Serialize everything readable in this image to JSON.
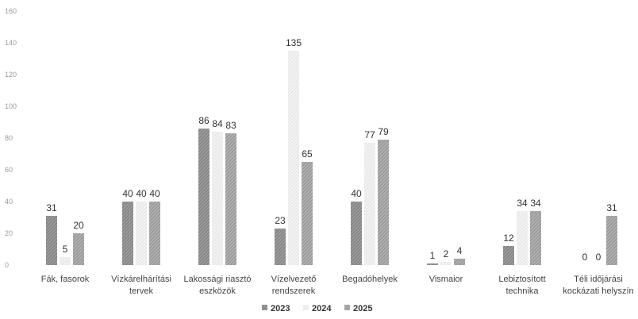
{
  "chart_data": {
    "type": "bar",
    "title": "",
    "xlabel": "",
    "ylabel": "",
    "ylim": [
      0,
      160
    ],
    "yticks": [
      0,
      20,
      40,
      60,
      80,
      100,
      120,
      140,
      160
    ],
    "grid": false,
    "legend_position": "bottom",
    "categories": [
      [
        "Fák, fasorok"
      ],
      [
        "Vízkárelhárítási",
        "tervek"
      ],
      [
        "Lakossági riasztó",
        "eszközök"
      ],
      [
        "Vízelvezető",
        "rendszerek"
      ],
      [
        "Begadóhelyek"
      ],
      [
        "Vismaior"
      ],
      [
        "Lebiztosított",
        "technika"
      ],
      [
        "Téli időjárási",
        "kockázati helyszín"
      ]
    ],
    "series": [
      {
        "name": "2023",
        "values": [
          31,
          40,
          86,
          23,
          40,
          1,
          12,
          0
        ],
        "color": "#8f8f8f"
      },
      {
        "name": "2024",
        "values": [
          5,
          40,
          84,
          135,
          77,
          2,
          34,
          0
        ],
        "color": "#e6e6e6"
      },
      {
        "name": "2025",
        "values": [
          20,
          40,
          83,
          65,
          79,
          4,
          34,
          31
        ],
        "color": "#a3a3a3"
      }
    ]
  }
}
